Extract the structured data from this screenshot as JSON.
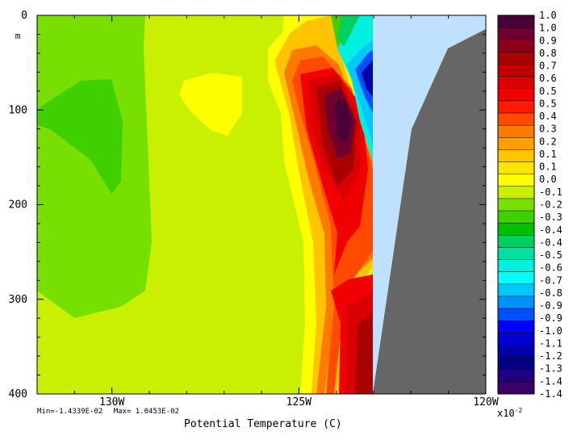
{
  "chart_data": {
    "type": "heatmap",
    "title": "",
    "xlabel": "Potential Temperature (C)",
    "ylabel": "m",
    "x_tick_labels": [
      "130W",
      "125W",
      "120W"
    ],
    "x_range_deg_west": [
      132,
      120
    ],
    "y_tick_labels": [
      "0",
      "100",
      "200",
      "300",
      "400"
    ],
    "y_range_m": [
      0,
      400
    ],
    "y_inverted": true,
    "min_label": "Min=-1.4339E-02",
    "max_label": "Max= 1.0453E-02",
    "colorbar_scale": "x10",
    "colorbar_exponent": "-2",
    "colorbar_labels": [
      "1.0",
      "1.0",
      "0.9",
      "0.8",
      "0.7",
      "0.6",
      "0.5",
      "0.5",
      "0.4",
      "0.3",
      "0.2",
      "0.1",
      "0.1",
      "0.0",
      "-0.1",
      "-0.2",
      "-0.3",
      "-0.4",
      "-0.4",
      "-0.5",
      "-0.6",
      "-0.7",
      "-0.8",
      "-0.9",
      "-0.9",
      "-1.0",
      "-1.1",
      "-1.2",
      "-1.3",
      "-1.4",
      "-1.4"
    ],
    "colorbar_colors": [
      "#4a0038",
      "#6e0030",
      "#8c0018",
      "#a80000",
      "#c00000",
      "#d80000",
      "#f00000",
      "#ff1a00",
      "#ff4a00",
      "#ff7a00",
      "#ffa000",
      "#ffc400",
      "#ffe400",
      "#ffff00",
      "#c8f000",
      "#78e000",
      "#40d000",
      "#00c000",
      "#00d060",
      "#00e0a0",
      "#00f0e0",
      "#00ffff",
      "#00c8ff",
      "#0090ff",
      "#0050ff",
      "#0000ff",
      "#0000d0",
      "#0000a8",
      "#000080",
      "#200080",
      "#380068"
    ],
    "land_color": "#666666",
    "undef_color": "#c0e0ff",
    "grid": false
  }
}
